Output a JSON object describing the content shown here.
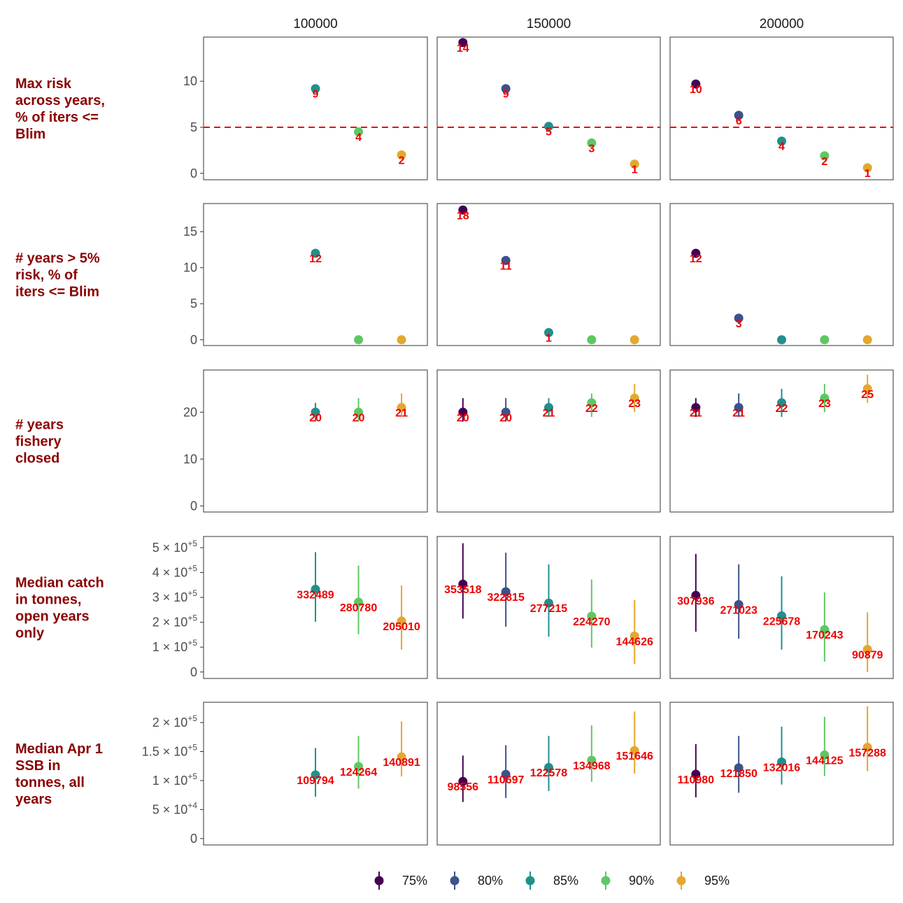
{
  "chart_data": {
    "type": "scatter",
    "description_free": true,
    "column_facets": [
      "100000",
      "150000",
      "200000"
    ],
    "series": [
      {
        "name": "75%",
        "color": "#440154"
      },
      {
        "name": "80%",
        "color": "#3b528b"
      },
      {
        "name": "85%",
        "color": "#21908c"
      },
      {
        "name": "90%",
        "color": "#5dc863"
      },
      {
        "name": "95%",
        "color": "#e3a82f"
      }
    ],
    "reference_line": {
      "panel_row": 0,
      "y": 5,
      "color": "#ee0000",
      "style": "dashed"
    },
    "rows": [
      {
        "label_lines": [
          "Max risk",
          "across years,",
          "% of iters <=",
          "Blim"
        ],
        "ylim": [
          -0.7,
          14.8
        ],
        "ticks": [
          {
            "v": 0,
            "text": "0"
          },
          {
            "v": 5,
            "text": "5"
          },
          {
            "v": 10,
            "text": "10"
          }
        ],
        "panels": [
          [
            {
              "s": 2,
              "y": 9.2,
              "label": "9"
            },
            {
              "s": 3,
              "y": 4.5,
              "label": "4"
            },
            {
              "s": 4,
              "y": 2.0,
              "label": "2"
            }
          ],
          [
            {
              "s": 0,
              "y": 14.2,
              "label": "14"
            },
            {
              "s": 1,
              "y": 9.2,
              "label": "9"
            },
            {
              "s": 2,
              "y": 5.1,
              "label": "5"
            },
            {
              "s": 3,
              "y": 3.3,
              "label": "3"
            },
            {
              "s": 4,
              "y": 1.0,
              "label": "1"
            }
          ],
          [
            {
              "s": 0,
              "y": 9.7,
              "label": "10"
            },
            {
              "s": 1,
              "y": 6.3,
              "label": "6"
            },
            {
              "s": 2,
              "y": 3.5,
              "label": "4"
            },
            {
              "s": 3,
              "y": 1.9,
              "label": "2"
            },
            {
              "s": 4,
              "y": 0.6,
              "label": "1"
            }
          ]
        ]
      },
      {
        "label_lines": [
          "# years > 5%",
          "risk, % of",
          "iters <= Blim"
        ],
        "ylim": [
          -0.8,
          18.9
        ],
        "ticks": [
          {
            "v": 0,
            "text": "0"
          },
          {
            "v": 5,
            "text": "5"
          },
          {
            "v": 10,
            "text": "10"
          },
          {
            "v": 15,
            "text": "15"
          }
        ],
        "panels": [
          [
            {
              "s": 2,
              "y": 12,
              "label": "12"
            },
            {
              "s": 3,
              "y": 0,
              "label": ""
            },
            {
              "s": 4,
              "y": 0,
              "label": ""
            }
          ],
          [
            {
              "s": 0,
              "y": 18,
              "label": "18"
            },
            {
              "s": 1,
              "y": 11,
              "label": "11"
            },
            {
              "s": 2,
              "y": 1,
              "label": "1"
            },
            {
              "s": 3,
              "y": 0,
              "label": ""
            },
            {
              "s": 4,
              "y": 0,
              "label": ""
            }
          ],
          [
            {
              "s": 0,
              "y": 12,
              "label": "12"
            },
            {
              "s": 1,
              "y": 3,
              "label": "3"
            },
            {
              "s": 2,
              "y": 0,
              "label": ""
            },
            {
              "s": 3,
              "y": 0,
              "label": ""
            },
            {
              "s": 4,
              "y": 0,
              "label": ""
            }
          ]
        ]
      },
      {
        "label_lines": [
          "# years",
          "fishery",
          "closed"
        ],
        "ylim": [
          -1.3,
          29.0
        ],
        "ticks": [
          {
            "v": 0,
            "text": "0"
          },
          {
            "v": 10,
            "text": "10"
          },
          {
            "v": 20,
            "text": "20"
          }
        ],
        "panels": [
          [
            {
              "s": 2,
              "y": 20,
              "lo": 18,
              "hi": 22,
              "label": "20"
            },
            {
              "s": 3,
              "y": 20,
              "lo": 18,
              "hi": 23,
              "label": "20"
            },
            {
              "s": 4,
              "y": 21,
              "lo": 19,
              "hi": 24,
              "label": "21"
            }
          ],
          [
            {
              "s": 0,
              "y": 20,
              "lo": 18,
              "hi": 23,
              "label": "20"
            },
            {
              "s": 1,
              "y": 20,
              "lo": 18,
              "hi": 23,
              "label": "20"
            },
            {
              "s": 2,
              "y": 21,
              "lo": 19,
              "hi": 23,
              "label": "21"
            },
            {
              "s": 3,
              "y": 22,
              "lo": 19,
              "hi": 24,
              "label": "22"
            },
            {
              "s": 4,
              "y": 23,
              "lo": 20,
              "hi": 26,
              "label": "23"
            }
          ],
          [
            {
              "s": 0,
              "y": 21,
              "lo": 19,
              "hi": 23,
              "label": "21"
            },
            {
              "s": 1,
              "y": 21,
              "lo": 19,
              "hi": 24,
              "label": "21"
            },
            {
              "s": 2,
              "y": 22,
              "lo": 19,
              "hi": 25,
              "label": "22"
            },
            {
              "s": 3,
              "y": 23,
              "lo": 20,
              "hi": 26,
              "label": "23"
            },
            {
              "s": 4,
              "y": 25,
              "lo": 22,
              "hi": 28,
              "label": "25"
            }
          ]
        ]
      },
      {
        "label_lines": [
          "Median catch",
          "in tonnes,",
          "open years",
          "only"
        ],
        "ylim": [
          -26000,
          545000
        ],
        "ticks": [
          {
            "v": 0,
            "text": "0"
          },
          {
            "v": 100000,
            "text": "1 × 10",
            "sup": "+5"
          },
          {
            "v": 200000,
            "text": "2 × 10",
            "sup": "+5"
          },
          {
            "v": 300000,
            "text": "3 × 10",
            "sup": "+5"
          },
          {
            "v": 400000,
            "text": "4 × 10",
            "sup": "+5"
          },
          {
            "v": 500000,
            "text": "5 × 10",
            "sup": "+5"
          }
        ],
        "panels": [
          [
            {
              "s": 2,
              "y": 332489,
              "lo": 202000,
              "hi": 482000,
              "label": "332489"
            },
            {
              "s": 3,
              "y": 280780,
              "lo": 152000,
              "hi": 428000,
              "label": "280780"
            },
            {
              "s": 4,
              "y": 205010,
              "lo": 90000,
              "hi": 348000,
              "label": "205010"
            }
          ],
          [
            {
              "s": 0,
              "y": 353518,
              "lo": 215000,
              "hi": 518000,
              "label": "353518"
            },
            {
              "s": 1,
              "y": 322815,
              "lo": 182000,
              "hi": 480000,
              "label": "322815"
            },
            {
              "s": 2,
              "y": 277215,
              "lo": 142000,
              "hi": 433000,
              "label": "277215"
            },
            {
              "s": 3,
              "y": 224270,
              "lo": 98000,
              "hi": 372000,
              "label": "224270"
            },
            {
              "s": 4,
              "y": 144626,
              "lo": 32000,
              "hi": 290000,
              "label": "144626"
            }
          ],
          [
            {
              "s": 0,
              "y": 307936,
              "lo": 162000,
              "hi": 475000,
              "label": "307936"
            },
            {
              "s": 1,
              "y": 271023,
              "lo": 134000,
              "hi": 433000,
              "label": "271023"
            },
            {
              "s": 2,
              "y": 225678,
              "lo": 90000,
              "hi": 385000,
              "label": "225678"
            },
            {
              "s": 3,
              "y": 170243,
              "lo": 42000,
              "hi": 320000,
              "label": "170243"
            },
            {
              "s": 4,
              "y": 90879,
              "lo": 0,
              "hi": 240000,
              "label": "90879"
            }
          ]
        ]
      },
      {
        "label_lines": [
          "Median Apr 1",
          "SSB in",
          "tonnes, all",
          "years"
        ],
        "ylim": [
          -11000,
          235000
        ],
        "ticks": [
          {
            "v": 0,
            "text": "0"
          },
          {
            "v": 50000,
            "text": "5 × 10",
            "sup": "+4"
          },
          {
            "v": 100000,
            "text": "1 × 10",
            "sup": "+5"
          },
          {
            "v": 150000,
            "text": "1.5 × 10",
            "sup": "+5"
          },
          {
            "v": 200000,
            "text": "2 × 10",
            "sup": "+5"
          }
        ],
        "panels": [
          [
            {
              "s": 2,
              "y": 109794,
              "lo": 72000,
              "hi": 156000,
              "label": "109794"
            },
            {
              "s": 3,
              "y": 124264,
              "lo": 86000,
              "hi": 177000,
              "label": "124264"
            },
            {
              "s": 4,
              "y": 140891,
              "lo": 107000,
              "hi": 202000,
              "label": "140891"
            }
          ],
          [
            {
              "s": 0,
              "y": 98556,
              "lo": 63000,
              "hi": 143000,
              "label": "98556"
            },
            {
              "s": 1,
              "y": 110697,
              "lo": 70000,
              "hi": 161000,
              "label": "110697"
            },
            {
              "s": 2,
              "y": 122578,
              "lo": 82000,
              "hi": 177000,
              "label": "122578"
            },
            {
              "s": 3,
              "y": 134968,
              "lo": 98000,
              "hi": 195000,
              "label": "134968"
            },
            {
              "s": 4,
              "y": 151646,
              "lo": 112000,
              "hi": 219000,
              "label": "151646"
            }
          ],
          [
            {
              "s": 0,
              "y": 110980,
              "lo": 71000,
              "hi": 163000,
              "label": "110980"
            },
            {
              "s": 1,
              "y": 121850,
              "lo": 79000,
              "hi": 177000,
              "label": "121850"
            },
            {
              "s": 2,
              "y": 132016,
              "lo": 93000,
              "hi": 193000,
              "label": "132016"
            },
            {
              "s": 3,
              "y": 144125,
              "lo": 108000,
              "hi": 210000,
              "label": "144125"
            },
            {
              "s": 4,
              "y": 157288,
              "lo": 116000,
              "hi": 228000,
              "label": "157288"
            }
          ]
        ]
      }
    ]
  }
}
